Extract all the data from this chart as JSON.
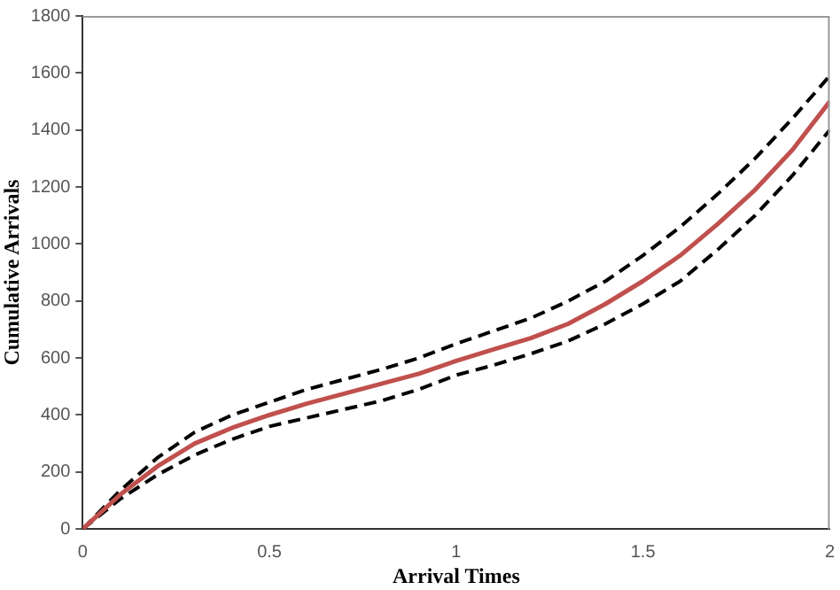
{
  "chart_data": {
    "type": "line",
    "xlabel": "Arrival Times",
    "ylabel": "Cumulative Arrivals",
    "x": [
      0,
      0.1,
      0.2,
      0.3,
      0.4,
      0.5,
      0.6,
      0.7,
      0.8,
      0.9,
      1,
      1.1,
      1.2,
      1.3,
      1.4,
      1.5,
      1.6,
      1.7,
      1.8,
      1.9,
      2
    ],
    "series": [
      {
        "color": "#c0504d",
        "line_style": "solid",
        "values": [
          0,
          120,
          220,
          300,
          355,
          400,
          440,
          475,
          510,
          545,
          590,
          630,
          670,
          720,
          790,
          870,
          960,
          1070,
          1190,
          1330,
          1500
        ]
      },
      {
        "color": "#000000",
        "line_style": "dashed",
        "values": [
          0,
          135,
          250,
          340,
          400,
          445,
          490,
          525,
          560,
          600,
          650,
          695,
          740,
          800,
          870,
          960,
          1060,
          1175,
          1300,
          1440,
          1590
        ]
      },
      {
        "color": "#000000",
        "line_style": "dashed",
        "values": [
          0,
          105,
          190,
          260,
          315,
          360,
          390,
          420,
          450,
          490,
          540,
          575,
          615,
          660,
          720,
          790,
          870,
          980,
          1100,
          1240,
          1400
        ]
      }
    ],
    "xlim": [
      0,
      2
    ],
    "xticks": [
      0,
      0.5,
      1,
      1.5,
      2
    ],
    "ylim": [
      0,
      1800
    ],
    "yticks": [
      0,
      200,
      400,
      600,
      800,
      1000,
      1200,
      1400,
      1600,
      1800
    ],
    "grid": false,
    "legend": false,
    "marker": "none"
  }
}
